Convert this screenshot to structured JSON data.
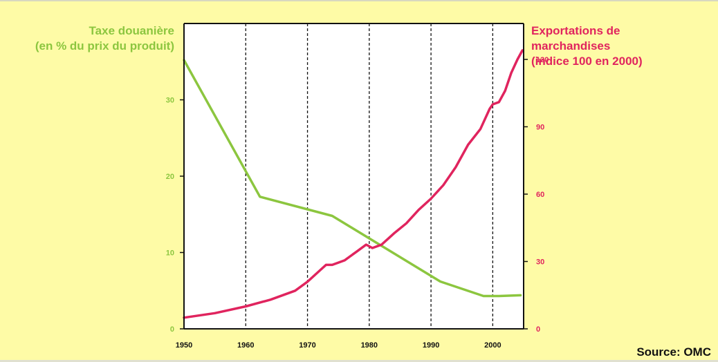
{
  "source_label": "Source: OMC",
  "colors": {
    "background": "#fefba6",
    "tariff": "#8cc63f",
    "exports": "#e0245e",
    "axis": "#111111"
  },
  "chart_data": {
    "type": "line",
    "title": "",
    "xlabel": "",
    "x_ticks": [
      1950,
      1960,
      1970,
      1980,
      1990,
      2000
    ],
    "xlim": [
      1950,
      2005
    ],
    "vertical_dashed_gridlines": [
      1960,
      1970,
      1980,
      1990,
      2000
    ],
    "y_left": {
      "label_lines": [
        "Taxe douanière",
        "(en % du prix du produit)"
      ],
      "ticks": [
        0,
        10,
        20,
        30
      ],
      "ylim": [
        0,
        40
      ]
    },
    "y_right": {
      "label_lines": [
        "Exportations de",
        "marchandises",
        "(indice 100 en 2000)"
      ],
      "ticks": [
        0,
        30,
        60,
        90,
        120
      ],
      "ylim": [
        0,
        136
      ]
    },
    "series": [
      {
        "name": "Taxe douanière",
        "axis": "left",
        "color": "#8cc63f",
        "points": [
          [
            1950,
            35.2
          ],
          [
            1962.3,
            17.3
          ],
          [
            1974,
            14.8
          ],
          [
            1991.5,
            6.2
          ],
          [
            1998.5,
            4.3
          ],
          [
            2001,
            4.3
          ],
          [
            2004.5,
            4.4
          ]
        ]
      },
      {
        "name": "Exportations de marchandises",
        "axis": "right",
        "color": "#e0245e",
        "points": [
          [
            1950,
            5
          ],
          [
            1955,
            7
          ],
          [
            1960,
            10
          ],
          [
            1964,
            13
          ],
          [
            1968,
            17
          ],
          [
            1970,
            21
          ],
          [
            1972,
            26
          ],
          [
            1973,
            28.5
          ],
          [
            1974,
            28.5
          ],
          [
            1976,
            30.5
          ],
          [
            1978,
            34.5
          ],
          [
            1979.5,
            37.5
          ],
          [
            1980.5,
            36
          ],
          [
            1982,
            37.5
          ],
          [
            1984,
            42.5
          ],
          [
            1986,
            47
          ],
          [
            1988,
            53
          ],
          [
            1990,
            58
          ],
          [
            1992,
            64
          ],
          [
            1994,
            72
          ],
          [
            1996,
            82
          ],
          [
            1998,
            89
          ],
          [
            1999.5,
            98
          ],
          [
            2000,
            100
          ],
          [
            2001,
            101
          ],
          [
            2002,
            106
          ],
          [
            2003,
            114
          ],
          [
            2004,
            120
          ],
          [
            2004.8,
            124
          ]
        ]
      }
    ]
  }
}
